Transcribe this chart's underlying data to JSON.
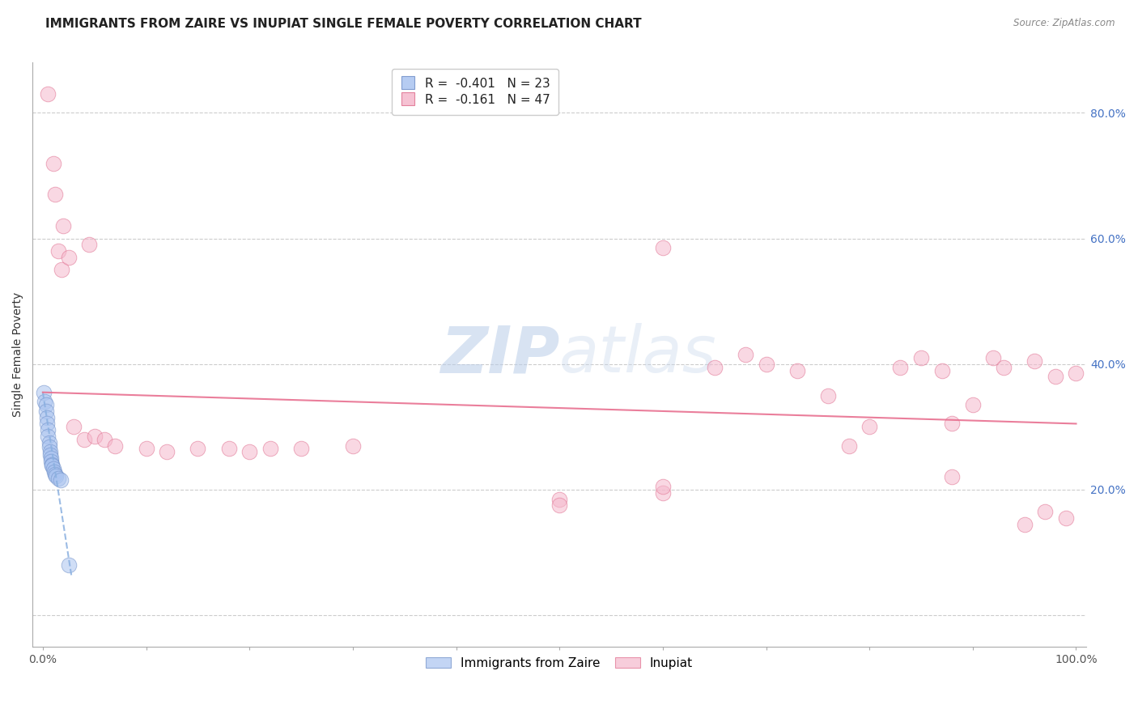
{
  "title": "IMMIGRANTS FROM ZAIRE VS INUPIAT SINGLE FEMALE POVERTY CORRELATION CHART",
  "source": "Source: ZipAtlas.com",
  "ylabel": "Single Female Poverty",
  "xlim": [
    -0.01,
    1.01
  ],
  "ylim": [
    -0.05,
    0.88
  ],
  "yticks": [
    0.0,
    0.2,
    0.4,
    0.6,
    0.8
  ],
  "ytick_labels_right": [
    "",
    "20.0%",
    "40.0%",
    "60.0%",
    "80.0%"
  ],
  "xticks": [
    0.0,
    0.1,
    0.2,
    0.3,
    0.4,
    0.5,
    0.6,
    0.7,
    0.8,
    0.9,
    1.0
  ],
  "xtick_labels": [
    "0.0%",
    "",
    "",
    "",
    "",
    "",
    "",
    "",
    "",
    "",
    "100.0%"
  ],
  "legend_r1": "R =  -0.401   N = 23",
  "legend_r2": "R =  -0.161   N = 47",
  "watermark_zip": "ZIP",
  "watermark_atlas": "atlas",
  "blue_color": "#aac4f0",
  "pink_color": "#f5b8cc",
  "blue_edge": "#7090c8",
  "pink_edge": "#e07090",
  "blue_trend_color": "#8ab0e0",
  "pink_trend_color": "#e87090",
  "zaire_x": [
    0.001,
    0.002,
    0.003,
    0.003,
    0.004,
    0.004,
    0.005,
    0.005,
    0.006,
    0.006,
    0.007,
    0.007,
    0.008,
    0.008,
    0.009,
    0.009,
    0.01,
    0.011,
    0.012,
    0.013,
    0.015,
    0.017,
    0.025
  ],
  "zaire_y": [
    0.355,
    0.34,
    0.335,
    0.325,
    0.315,
    0.305,
    0.295,
    0.285,
    0.275,
    0.268,
    0.26,
    0.255,
    0.25,
    0.245,
    0.24,
    0.238,
    0.233,
    0.228,
    0.225,
    0.222,
    0.218,
    0.215,
    0.08
  ],
  "inupiat_x": [
    0.005,
    0.01,
    0.012,
    0.015,
    0.018,
    0.02,
    0.025,
    0.03,
    0.04,
    0.045,
    0.5,
    0.5,
    0.6,
    0.6,
    0.6,
    0.65,
    0.68,
    0.7,
    0.73,
    0.76,
    0.78,
    0.8,
    0.83,
    0.85,
    0.87,
    0.88,
    0.88,
    0.9,
    0.92,
    0.93,
    0.95,
    0.96,
    0.97,
    0.98,
    0.99,
    1.0,
    0.05,
    0.06,
    0.07,
    0.1,
    0.12,
    0.15,
    0.18,
    0.2,
    0.22,
    0.25,
    0.3
  ],
  "inupiat_y": [
    0.83,
    0.72,
    0.67,
    0.58,
    0.55,
    0.62,
    0.57,
    0.3,
    0.28,
    0.59,
    0.185,
    0.175,
    0.195,
    0.205,
    0.585,
    0.395,
    0.415,
    0.4,
    0.39,
    0.35,
    0.27,
    0.3,
    0.395,
    0.41,
    0.39,
    0.305,
    0.22,
    0.335,
    0.41,
    0.395,
    0.145,
    0.405,
    0.165,
    0.38,
    0.155,
    0.385,
    0.285,
    0.28,
    0.27,
    0.265,
    0.26,
    0.265,
    0.265,
    0.26,
    0.265,
    0.265,
    0.27
  ],
  "pink_trend_x0": 0.0,
  "pink_trend_x1": 1.0,
  "pink_trend_y0": 0.355,
  "pink_trend_y1": 0.305,
  "blue_trend_x0": 0.0,
  "blue_trend_x1": 0.028,
  "blue_trend_y0": 0.355,
  "blue_trend_y1": 0.06,
  "title_fontsize": 11,
  "axis_label_fontsize": 10,
  "tick_fontsize": 10,
  "marker_size": 180,
  "alpha": 0.55
}
